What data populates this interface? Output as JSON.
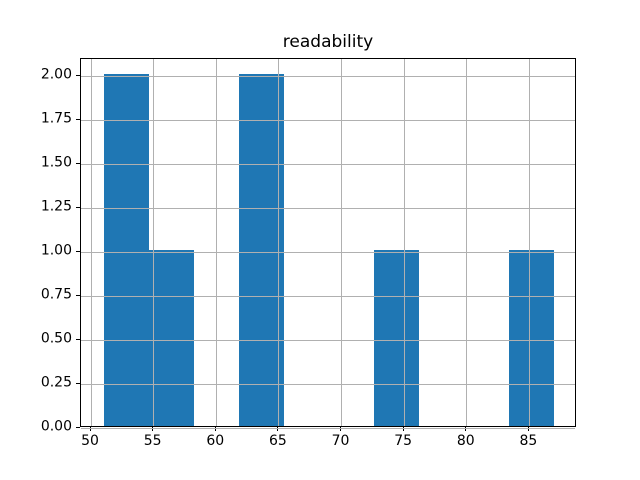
{
  "chart_data": {
    "type": "bar",
    "subtype": "histogram",
    "title": "readability",
    "xlabel": "",
    "ylabel": "",
    "bin_edges": [
      51.0,
      54.6,
      58.2,
      61.8,
      65.4,
      69.0,
      72.6,
      76.2,
      79.8,
      83.4,
      87.0
    ],
    "counts": [
      2,
      1,
      0,
      2,
      0,
      0,
      1,
      0,
      0,
      1
    ],
    "xlim": [
      49.2,
      88.8
    ],
    "ylim": [
      0,
      2.1
    ],
    "xtick_values": [
      50,
      55,
      60,
      65,
      70,
      75,
      80,
      85
    ],
    "xtick_labels": [
      "50",
      "55",
      "60",
      "65",
      "70",
      "75",
      "80",
      "85"
    ],
    "ytick_values": [
      0.0,
      0.25,
      0.5,
      0.75,
      1.0,
      1.25,
      1.5,
      1.75,
      2.0
    ],
    "ytick_labels": [
      "0.00",
      "0.25",
      "0.50",
      "0.75",
      "1.00",
      "1.25",
      "1.50",
      "1.75",
      "2.00"
    ],
    "grid": true,
    "legend": false,
    "bar_color": "#1f77b4",
    "grid_color": "#b0b0b0",
    "spine_color": "#000000",
    "background_color": "#ffffff"
  }
}
